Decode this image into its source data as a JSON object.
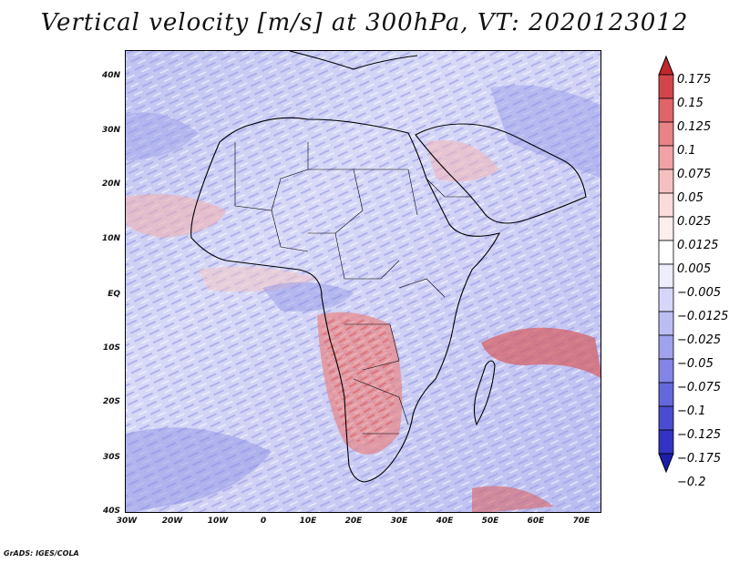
{
  "title": "Vertical velocity [m/s] at 300hPa, VT: 2020123012",
  "credit": "GrADS: IGES/COLA",
  "map": {
    "lat_labels": [
      "40N",
      "30N",
      "20N",
      "10N",
      "EQ",
      "10S",
      "20S",
      "30S",
      "40S"
    ],
    "lon_labels": [
      "30W",
      "20W",
      "10W",
      "0",
      "10E",
      "20E",
      "30E",
      "40E",
      "50E",
      "60E",
      "70E"
    ],
    "lat_range": [
      -40,
      45
    ],
    "lon_range": [
      -30,
      75
    ]
  },
  "colorbar": {
    "levels": [
      "0.175",
      "0.15",
      "0.125",
      "0.1",
      "0.075",
      "0.05",
      "0.025",
      "0.0125",
      "0.005",
      "−0.005",
      "−0.0125",
      "−0.025",
      "−0.05",
      "−0.075",
      "−0.1",
      "−0.125",
      "−0.175",
      "−0.2"
    ],
    "colors": [
      "#c0282c",
      "#d2454a",
      "#df6468",
      "#e88386",
      "#f0a2a4",
      "#f6c0c1",
      "#fbdcdc",
      "#fdeeee",
      "#ffffff",
      "#ededfc",
      "#d6d7f8",
      "#bcbef3",
      "#a0a2ec",
      "#8285e4",
      "#6568da",
      "#4a4dd0",
      "#3134c2",
      "#1d1fab"
    ]
  }
}
